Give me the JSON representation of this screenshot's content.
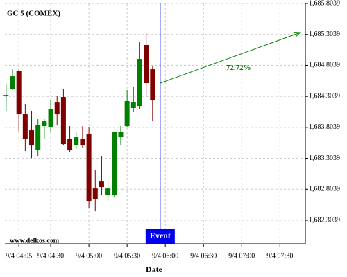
{
  "chart_data": {
    "type": "candlestick",
    "title": "GC 5 (COMEX)",
    "x_label": "Date",
    "watermark": "www.delkos.com",
    "x": [
      235,
      240,
      245,
      250,
      255,
      260,
      265,
      270,
      275,
      280,
      285,
      290,
      295,
      300,
      305,
      310,
      315,
      320,
      325,
      330,
      335,
      340,
      345,
      350
    ],
    "open": [
      1684.327,
      1684.428,
      1684.719,
      1684.014,
      1683.757,
      1683.433,
      1683.824,
      1683.813,
      1684.204,
      1684.294,
      1683.623,
      1683.511,
      1683.623,
      1683.701,
      1682.817,
      1682.929,
      1682.706,
      1682.706,
      1683.645,
      1683.824,
      1684.115,
      1684.148,
      1685.133,
      1684.741
    ],
    "high": [
      1684.495,
      1684.741,
      1684.741,
      1684.182,
      1684.07,
      1683.936,
      1683.936,
      1684.238,
      1684.316,
      1684.428,
      1683.824,
      1683.735,
      1683.824,
      1683.813,
      1683.119,
      1683.343,
      1682.952,
      1683.735,
      1683.824,
      1684.406,
      1684.462,
      1685.189,
      1685.323,
      1684.797
    ],
    "low": [
      1684.07,
      1684.406,
      1683.735,
      1683.421,
      1683.309,
      1683.343,
      1683.623,
      1683.735,
      1683.846,
      1683.511,
      1683.399,
      1683.455,
      1683.477,
      1682.504,
      1682.448,
      1682.706,
      1682.616,
      1682.672,
      1683.511,
      1683.813,
      1684.048,
      1684.093,
      1684.294,
      1683.902
    ],
    "close": [
      1684.327,
      1684.629,
      1684.014,
      1683.623,
      1683.511,
      1683.846,
      1683.902,
      1684.104,
      1684.014,
      1683.533,
      1683.433,
      1683.645,
      1683.511,
      1682.616,
      1682.649,
      1682.84,
      1682.817,
      1683.735,
      1683.735,
      1684.227,
      1684.216,
      1684.909,
      1684.518,
      1684.238
    ],
    "up_color": "#008000",
    "down_color": "#800000",
    "event": {
      "x": 356,
      "label": "Event",
      "color": "#0000ee"
    },
    "projection": {
      "x": [
        356,
        466
      ],
      "y": [
        1684.518,
        1685.334
      ],
      "label": "72.72%",
      "color": "#008000"
    },
    "xlim": [
      234,
      470
    ],
    "ylim": [
      1681.924,
      1685.8039
    ],
    "xticks": [
      {
        "value": 245,
        "label": "9/4 04:05"
      },
      {
        "value": 270,
        "label": "9/4 04:30"
      },
      {
        "value": 300,
        "label": "9/4 05:00"
      },
      {
        "value": 330,
        "label": "9/4 05:30"
      },
      {
        "value": 360,
        "label": "9/4 06:00"
      },
      {
        "value": 390,
        "label": "9/4 06:30"
      },
      {
        "value": 420,
        "label": "9/4 07:00"
      },
      {
        "value": 450,
        "label": "9/4 07:30"
      }
    ],
    "yticks": [
      {
        "value": 1682.3039,
        "label": "1,682.3039"
      },
      {
        "value": 1682.8039,
        "label": "1,682.8039"
      },
      {
        "value": 1683.3039,
        "label": "1,683.3039"
      },
      {
        "value": 1683.8039,
        "label": "1,683.8039"
      },
      {
        "value": 1684.3039,
        "label": "1,684.3039"
      },
      {
        "value": 1684.8039,
        "label": "1,684.8039"
      },
      {
        "value": 1685.3039,
        "label": "1,685.3039"
      },
      {
        "value": 1685.8039,
        "label": "1,685.8039"
      }
    ],
    "grid": true
  }
}
